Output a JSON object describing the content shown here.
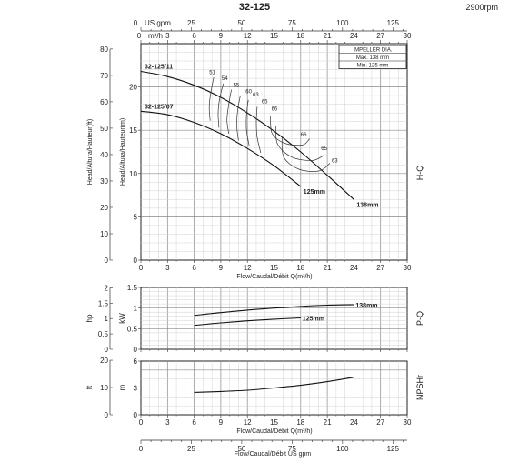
{
  "header": {
    "model": "32-125",
    "speed": "2900rpm"
  },
  "top_axes": {
    "usgpm_label": "US gpm",
    "usgpm_ticks": [
      "0",
      "25",
      "50",
      "75",
      "100",
      "125"
    ],
    "m3h_label": "m³/h",
    "m3h_ticks": [
      "0",
      "3",
      "6",
      "9",
      "12",
      "15",
      "18",
      "21",
      "24",
      "27",
      "30"
    ]
  },
  "bottom_axis": {
    "ticks": [
      "0",
      "25",
      "50",
      "75",
      "100",
      "125"
    ],
    "label": "Flow/Caudal/Débit US gpm"
  },
  "legend_box": {
    "title": "IMPELLER DIA.",
    "max": "Max. 138 mm",
    "min": "Min. 125 mm"
  },
  "chart_data": [
    {
      "type": "line",
      "title": "H-Q",
      "xlabel": "Flow/Caudal/Débit Q(m³/h)",
      "ylabel_left": "Head/Altura/Hauteur(ft)",
      "ylabel_right": "Head/Altura/Hauteur(m)",
      "xlim": [
        0,
        30
      ],
      "ylim": [
        0,
        25
      ],
      "x_ticks": [
        "0",
        "3",
        "6",
        "9",
        "12",
        "15",
        "18",
        "21",
        "24",
        "27",
        "30"
      ],
      "y_ticks_m": [
        "0",
        "5",
        "10",
        "15",
        "20"
      ],
      "y_ticks_ft": [
        "0",
        "10",
        "20",
        "30",
        "40",
        "50",
        "60",
        "70",
        "80"
      ],
      "grid": true,
      "series": [
        {
          "name": "32-125/11",
          "end_label": "138mm",
          "x": [
            0,
            3,
            6,
            9,
            12,
            15,
            18,
            21,
            24
          ],
          "y": [
            21.8,
            21.2,
            20.2,
            18.8,
            17.0,
            14.9,
            12.5,
            9.8,
            7.0
          ]
        },
        {
          "name": "32-125/07",
          "end_label": "125mm",
          "x": [
            0,
            3,
            6,
            9,
            12,
            15,
            18
          ],
          "y": [
            17.2,
            16.8,
            15.9,
            14.6,
            12.9,
            10.9,
            8.5
          ]
        }
      ],
      "efficiency_labels": [
        "51",
        "54",
        "55",
        "60",
        "63",
        "65",
        "66",
        "66",
        "65",
        "63"
      ]
    },
    {
      "type": "line",
      "title": "P-Q",
      "ylabel_left": "hp",
      "ylabel_right": "kW",
      "xlim": [
        0,
        30
      ],
      "ylim": [
        0,
        1.5
      ],
      "y_ticks_kw": [
        "0",
        "0.5",
        "1",
        "1.5"
      ],
      "y_ticks_hp": [
        "0",
        "0.5",
        "1",
        "1.5",
        "2"
      ],
      "grid": true,
      "series": [
        {
          "name": "138mm",
          "x": [
            6,
            9,
            12,
            15,
            18,
            21,
            24
          ],
          "y": [
            0.82,
            0.89,
            0.95,
            1.0,
            1.04,
            1.07,
            1.08
          ]
        },
        {
          "name": "125mm",
          "x": [
            6,
            9,
            12,
            15,
            18
          ],
          "y": [
            0.58,
            0.64,
            0.69,
            0.73,
            0.76
          ]
        }
      ]
    },
    {
      "type": "line",
      "title": "NPSHr",
      "xlabel": "Flow/Caudal/Débit Q(m³/h)",
      "ylabel_left": "ft",
      "ylabel_right": "m",
      "xlim": [
        0,
        30
      ],
      "ylim": [
        0,
        6
      ],
      "x_ticks": [
        "0",
        "3",
        "6",
        "9",
        "12",
        "15",
        "18",
        "21",
        "24",
        "27",
        "30"
      ],
      "y_ticks_m": [
        "0",
        "3",
        "6"
      ],
      "y_ticks_ft": [
        "0",
        "10",
        "20"
      ],
      "grid": true,
      "series": [
        {
          "x": [
            6,
            9,
            12,
            15,
            18,
            21,
            24
          ],
          "y": [
            2.5,
            2.6,
            2.75,
            3.0,
            3.3,
            3.7,
            4.2
          ]
        }
      ]
    }
  ]
}
